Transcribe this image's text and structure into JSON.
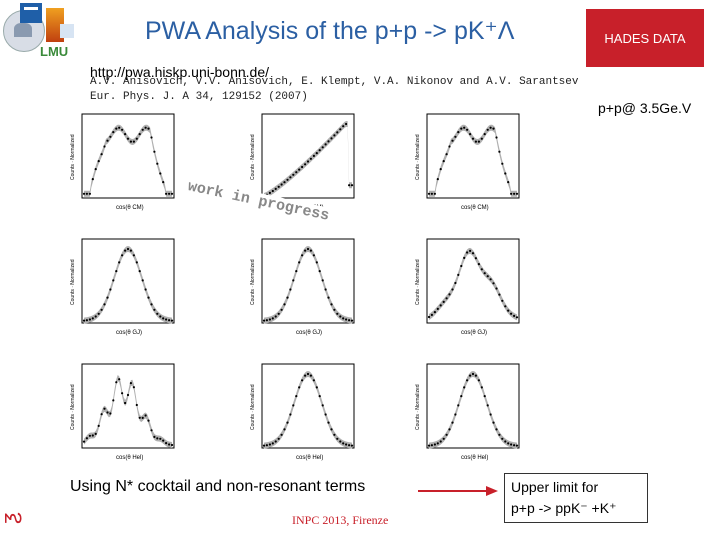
{
  "header": {
    "title": "PWA Analysis of the p+p -> pK⁺Λ",
    "badge": "HADES DATA",
    "logos": {
      "lmu_text": "LMU"
    }
  },
  "reference": {
    "url": "http://pwa.hiskp.uni-bonn.de/",
    "authors": "A.V. Anisovich, V.V. Anisovich, E. Klempt, V.A. Nikonov and A.V. Sarantsev",
    "journal": "Eur. Phys. J. A 34, 129152 (2007)"
  },
  "energy_label": "p+p@ 3.5Ge.V",
  "watermark": "work in progress",
  "panels": [
    {
      "ylabel": "Counts · Normalized",
      "xlabel": "cos(θ CM)",
      "shape": "plateau"
    },
    {
      "ylabel": "Counts · Normalized",
      "xlabel": "cos(θ CM)",
      "shape": "rising"
    },
    {
      "ylabel": "Counts · Normalized",
      "xlabel": "cos(θ CM)",
      "shape": "plateau"
    },
    {
      "ylabel": "Counts · Normalized",
      "xlabel": "cos(θ GJ)",
      "shape": "hump"
    },
    {
      "ylabel": "Counts · Normalized",
      "xlabel": "cos(θ GJ)",
      "shape": "hump"
    },
    {
      "ylabel": "Counts · Normalized",
      "xlabel": "cos(θ GJ)",
      "shape": "broad"
    },
    {
      "ylabel": "Counts · Normalized",
      "xlabel": "cos(θ Hel)",
      "shape": "noisy"
    },
    {
      "ylabel": "Counts · Normalized",
      "xlabel": "cos(θ Hel)",
      "shape": "hump"
    },
    {
      "ylabel": "Counts · Normalized",
      "xlabel": "cos(θ Hel)",
      "shape": "hump"
    }
  ],
  "caption": "Using N* cocktail and non-resonant terms",
  "upper_limit": {
    "line1": "Upper limit for",
    "line2": "p+p -> ppK⁻ +K⁺"
  },
  "footer": "INPC 2013, Firenze",
  "colors": {
    "title": "#2b5fa3",
    "badge": "#c8202a",
    "arrow": "#c8202a"
  }
}
